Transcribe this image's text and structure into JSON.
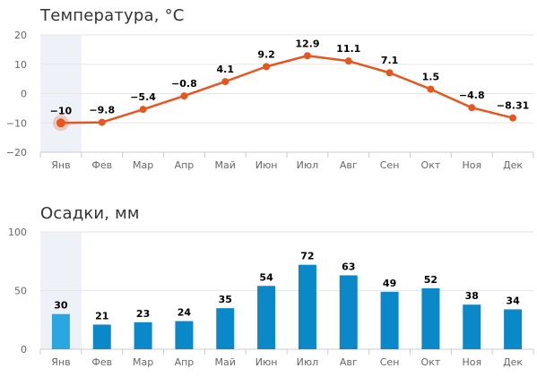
{
  "months": [
    "Янв",
    "Фев",
    "Мар",
    "Апр",
    "Май",
    "Июн",
    "Июл",
    "Авг",
    "Сен",
    "Окт",
    "Ноя",
    "Дек"
  ],
  "highlighted_month_index": 0,
  "chart_data": [
    {
      "type": "line",
      "title": "Температура, °C",
      "categories": [
        "Янв",
        "Фев",
        "Мар",
        "Апр",
        "Май",
        "Июн",
        "Июл",
        "Авг",
        "Сен",
        "Окт",
        "Ноя",
        "Дек"
      ],
      "series": [
        {
          "values": [
            -10,
            -9.8,
            -5.4,
            -0.8,
            4.1,
            9.2,
            12.9,
            11.1,
            7.1,
            1.5,
            -4.8,
            -8.31
          ],
          "labels": [
            "−10",
            "−9.8",
            "−5.4",
            "−0.8",
            "4.1",
            "9.2",
            "12.9",
            "11.1",
            "7.1",
            "1.5",
            "−4.8",
            "−8.31"
          ]
        }
      ],
      "ylim": [
        -20,
        20
      ],
      "yticks": [
        20,
        10,
        0,
        -10,
        -20
      ],
      "ytick_labels": [
        "20",
        "10",
        "0",
        "−10",
        "−20"
      ],
      "grid": true,
      "color": "#e8561f"
    },
    {
      "type": "bar",
      "title": "Осадки, мм",
      "categories": [
        "Янв",
        "Фев",
        "Мар",
        "Апр",
        "Май",
        "Июн",
        "Июл",
        "Авг",
        "Сен",
        "Окт",
        "Ноя",
        "Дек"
      ],
      "series": [
        {
          "values": [
            30,
            21,
            23,
            24,
            35,
            54,
            72,
            63,
            49,
            52,
            38,
            34
          ]
        }
      ],
      "ylim": [
        0,
        100
      ],
      "yticks": [
        100,
        50,
        0
      ],
      "ytick_labels": [
        "100",
        "50",
        "0"
      ],
      "grid": true,
      "color": "#0a88c8",
      "highlight_color": "#2aa6e0"
    }
  ]
}
